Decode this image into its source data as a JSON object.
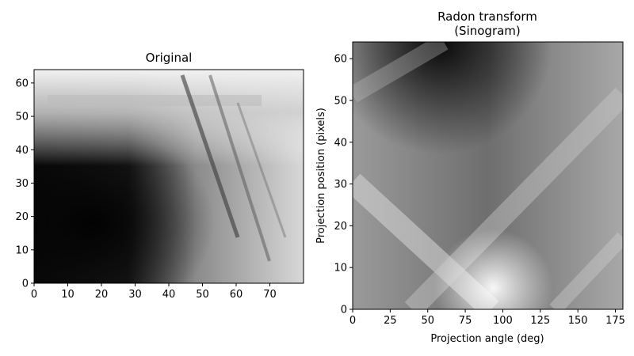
{
  "chart_data": [
    {
      "type": "heatmap",
      "title": "Original",
      "xlabel": "",
      "ylabel": "",
      "xlim": [
        0,
        80
      ],
      "ylim": [
        64,
        0
      ],
      "x_ticks": [
        0,
        10,
        20,
        30,
        40,
        50,
        60,
        70
      ],
      "y_ticks": [
        0,
        10,
        20,
        30,
        40,
        50,
        60
      ],
      "colormap": "gray",
      "grid": false
    },
    {
      "type": "heatmap",
      "title_lines": [
        "Radon transform",
        "(Sinogram)"
      ],
      "xlabel": "Projection angle (deg)",
      "ylabel": "Projection position (pixels)",
      "xlim": [
        0,
        180
      ],
      "ylim": [
        0,
        64
      ],
      "x_ticks": [
        0,
        25,
        50,
        75,
        100,
        125,
        150,
        175
      ],
      "y_ticks": [
        0,
        10,
        20,
        30,
        40,
        50,
        60
      ],
      "colormap": "gray",
      "grid": false
    }
  ]
}
